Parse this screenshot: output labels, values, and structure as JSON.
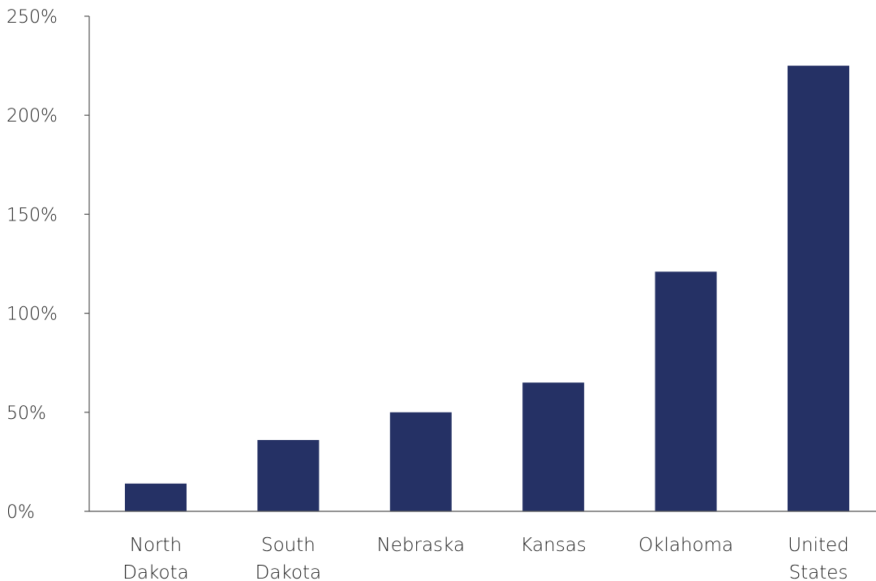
{
  "chart_data": {
    "type": "bar",
    "categories": [
      "North Dakota",
      "South Dakota",
      "Nebraska",
      "Kansas",
      "Oklahoma",
      "United States"
    ],
    "category_label_lines": [
      [
        "North",
        "Dakota"
      ],
      [
        "South",
        "Dakota"
      ],
      [
        "Nebraska"
      ],
      [
        "Kansas"
      ],
      [
        "Oklahoma"
      ],
      [
        "United",
        "States"
      ]
    ],
    "values": [
      14,
      36,
      50,
      65,
      121,
      225
    ],
    "ylim": [
      0,
      250
    ],
    "yticks": [
      0,
      50,
      100,
      150,
      200,
      250
    ],
    "ytick_labels": [
      "0%",
      "50%",
      "100%",
      "150%",
      "200%",
      "250%"
    ],
    "title": "",
    "xlabel": "",
    "ylabel": "",
    "grid": false,
    "colors": {
      "bar": "#253165",
      "axis": "#555555",
      "text": "#1f1f1f"
    }
  }
}
